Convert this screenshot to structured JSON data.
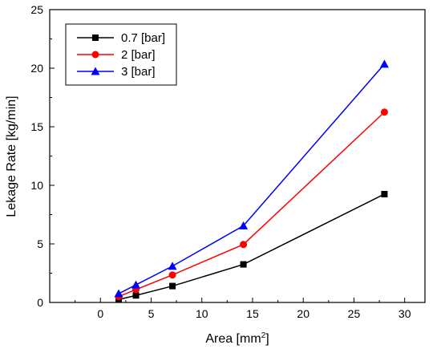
{
  "chart_data": {
    "type": "line",
    "xlabel": "Area [mm",
    "xlabel_sup": "2",
    "xlabel_end": "]",
    "ylabel": "Lekage Rate [kg/min]",
    "xlim": [
      -5,
      32
    ],
    "ylim": [
      0,
      25
    ],
    "x_ticks": [
      0,
      5,
      10,
      15,
      20,
      25,
      30
    ],
    "y_ticks": [
      0,
      5,
      10,
      15,
      20,
      25
    ],
    "x": [
      1.8,
      3.5,
      7.1,
      14.1,
      28.0
    ],
    "legend": "top-left",
    "grid": false,
    "series": [
      {
        "name": "0.7 [bar]",
        "color": "#000000",
        "marker": "square",
        "values": [
          0.25,
          0.6,
          1.4,
          3.25,
          9.25
        ]
      },
      {
        "name": "2 [bar]",
        "color": "#ff0000",
        "marker": "circle",
        "values": [
          0.5,
          1.1,
          2.35,
          4.95,
          16.25
        ]
      },
      {
        "name": "3 [bar]",
        "color": "#0000ff",
        "marker": "triangle",
        "values": [
          0.75,
          1.5,
          3.1,
          6.55,
          20.35
        ]
      }
    ]
  }
}
